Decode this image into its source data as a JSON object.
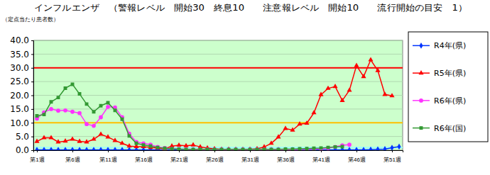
{
  "chart_data": {
    "type": "line",
    "title": "インフルエンザ　（警報レベル　開始30　終息10　　注意報レベル　開始10　　流行開始の目安　1）",
    "y_label": "（定点当たり患者数）",
    "categories": [
      "第1週",
      null,
      null,
      null,
      null,
      "第6週",
      null,
      null,
      null,
      null,
      "第11週",
      null,
      null,
      null,
      null,
      "第16週",
      null,
      null,
      null,
      null,
      "第21週",
      null,
      null,
      null,
      null,
      "第26週",
      null,
      null,
      null,
      null,
      "第31週",
      null,
      null,
      null,
      null,
      "第36週",
      null,
      null,
      null,
      null,
      "第41週",
      null,
      null,
      null,
      null,
      "第46週",
      null,
      null,
      null,
      null,
      "第51週",
      null
    ],
    "ylim": [
      0,
      40
    ],
    "yticks": [
      {
        "value": 0,
        "label": "0.0"
      },
      {
        "value": 5,
        "label": "5.0"
      },
      {
        "value": 10,
        "label": "10.0"
      },
      {
        "value": 15,
        "label": "15.0"
      },
      {
        "value": 20,
        "label": "20.0"
      },
      {
        "value": 25,
        "label": "25.0"
      },
      {
        "value": 30,
        "label": "30.0"
      },
      {
        "value": 35,
        "label": "35.0"
      },
      {
        "value": 40,
        "label": "40.0"
      }
    ],
    "grid": true,
    "legend": "right",
    "reference_lines": [
      {
        "value": 30,
        "color": "#ff0000"
      },
      {
        "value": 10,
        "color": "#ffc000"
      },
      {
        "value": 1,
        "color": "#99ffff"
      }
    ],
    "series": [
      {
        "name": "R4年(県)",
        "color": "#0033ff",
        "marker": "diamond",
        "values": [
          0.1,
          0.1,
          0.1,
          0.1,
          0.1,
          0.1,
          0.1,
          0.1,
          0.1,
          0.1,
          0.1,
          0.1,
          0.1,
          0.1,
          0.1,
          0.1,
          0.1,
          0.1,
          0.1,
          0.1,
          0.1,
          0.1,
          0.1,
          0.1,
          0.1,
          0.1,
          0.1,
          0.1,
          0.1,
          0.1,
          0.1,
          0.1,
          0.1,
          0.1,
          0.1,
          0.1,
          0.1,
          0.1,
          0.1,
          0.1,
          0.1,
          0.1,
          0.1,
          0.1,
          0.1,
          0.1,
          0.1,
          0.2,
          0.3,
          0.4,
          0.9,
          1.3
        ]
      },
      {
        "name": "R5年(県)",
        "color": "#ff0000",
        "marker": "triangle",
        "values": [
          3.2,
          4.5,
          4.5,
          3.0,
          3.3,
          4.0,
          3.2,
          3.0,
          4.0,
          5.8,
          4.8,
          3.5,
          2.5,
          1.5,
          1.3,
          1.3,
          1.0,
          0.8,
          0.5,
          1.5,
          1.8,
          1.6,
          1.9,
          1.2,
          0.8,
          0.5,
          0.3,
          0.3,
          0.2,
          0.2,
          0.3,
          0.5,
          1.2,
          2.5,
          4.8,
          7.9,
          7.3,
          9.5,
          9.8,
          13.6,
          20.2,
          22.5,
          23.2,
          18.1,
          21.8,
          30.8,
          26.8,
          32.9,
          29.0,
          20.3,
          19.8,
          null
        ]
      },
      {
        "name": "R6年(県)",
        "color": "#ff33ff",
        "marker": "circle",
        "values": [
          11.5,
          13.8,
          15.0,
          14.4,
          14.5,
          14.0,
          13.5,
          9.5,
          8.9,
          12.0,
          15.8,
          15.6,
          12.0,
          6.0,
          3.0,
          2.5,
          2.0,
          1.2,
          0.8,
          0.5,
          0.4,
          0.3,
          0.2,
          0.2,
          0.2,
          0.2,
          0.2,
          0.2,
          0.2,
          0.2,
          0.2,
          0.2,
          0.2,
          0.2,
          0.2,
          0.2,
          0.2,
          0.3,
          0.3,
          0.4,
          0.5,
          0.8,
          1.2,
          1.8,
          2.0,
          null,
          null,
          null,
          null,
          null,
          null,
          null
        ]
      },
      {
        "name": "R6年(国)",
        "color": "#339933",
        "marker": "square",
        "values": [
          12.5,
          13.0,
          17.6,
          19.2,
          22.6,
          24.0,
          20.5,
          16.8,
          14.0,
          16.2,
          17.3,
          14.5,
          11.3,
          5.2,
          2.5,
          1.9,
          1.5,
          1.0,
          0.7,
          0.5,
          0.4,
          0.3,
          0.3,
          0.3,
          0.3,
          0.3,
          0.3,
          0.3,
          0.3,
          0.3,
          0.3,
          0.3,
          0.3,
          0.3,
          0.3,
          0.4,
          0.4,
          0.5,
          0.6,
          0.7,
          0.8,
          1.0,
          1.2,
          1.3,
          null,
          null,
          null,
          null,
          null,
          null,
          null,
          null
        ]
      }
    ]
  }
}
